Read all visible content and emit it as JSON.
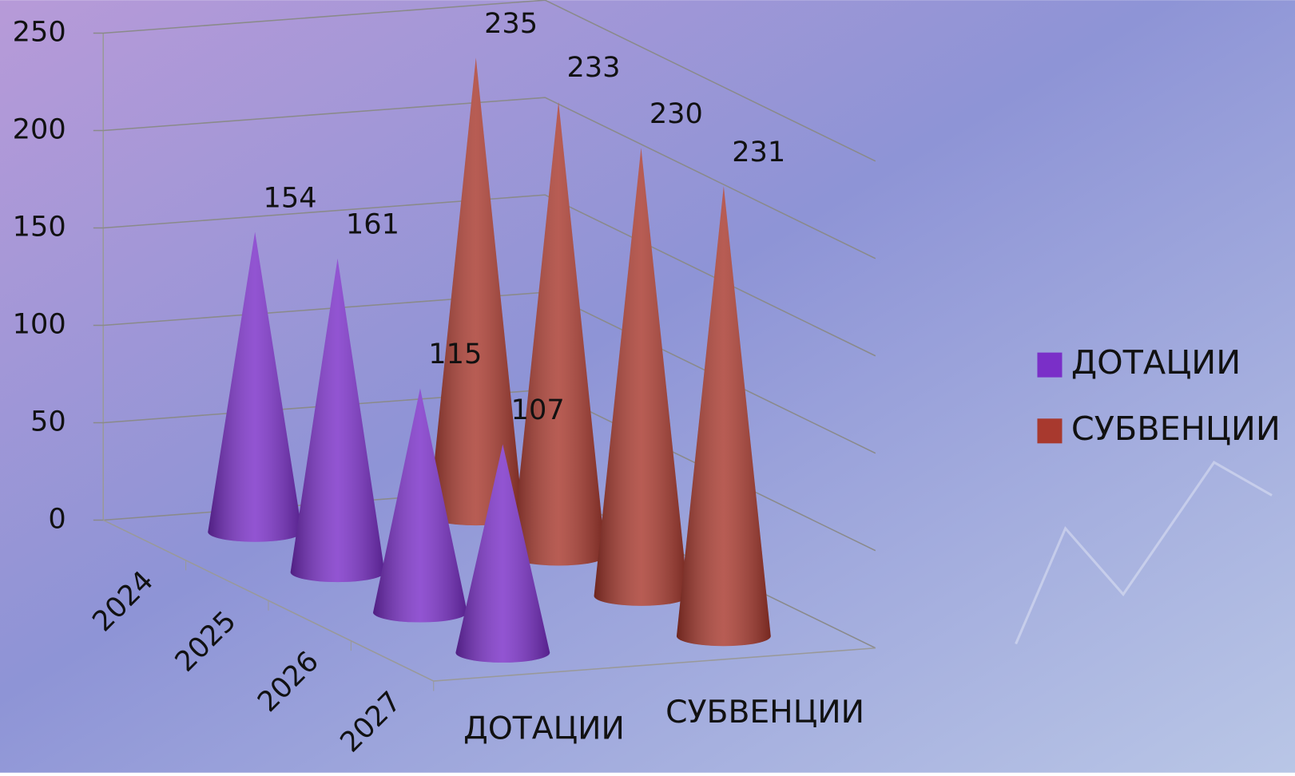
{
  "chart_data": {
    "type": "cone",
    "categories": [
      "2024",
      "2025",
      "2026",
      "2027"
    ],
    "series": [
      {
        "name": "ДОТАЦИИ",
        "color": "#7a2fc8",
        "values": [
          154,
          161,
          115,
          107
        ]
      },
      {
        "name": "СУБВЕНЦИИ",
        "color": "#a8392e",
        "values": [
          235,
          233,
          230,
          231
        ]
      }
    ],
    "ylim": [
      0,
      250
    ],
    "yticks": [
      0,
      50,
      100,
      150,
      200,
      250
    ],
    "grid": true,
    "legend": "right"
  }
}
